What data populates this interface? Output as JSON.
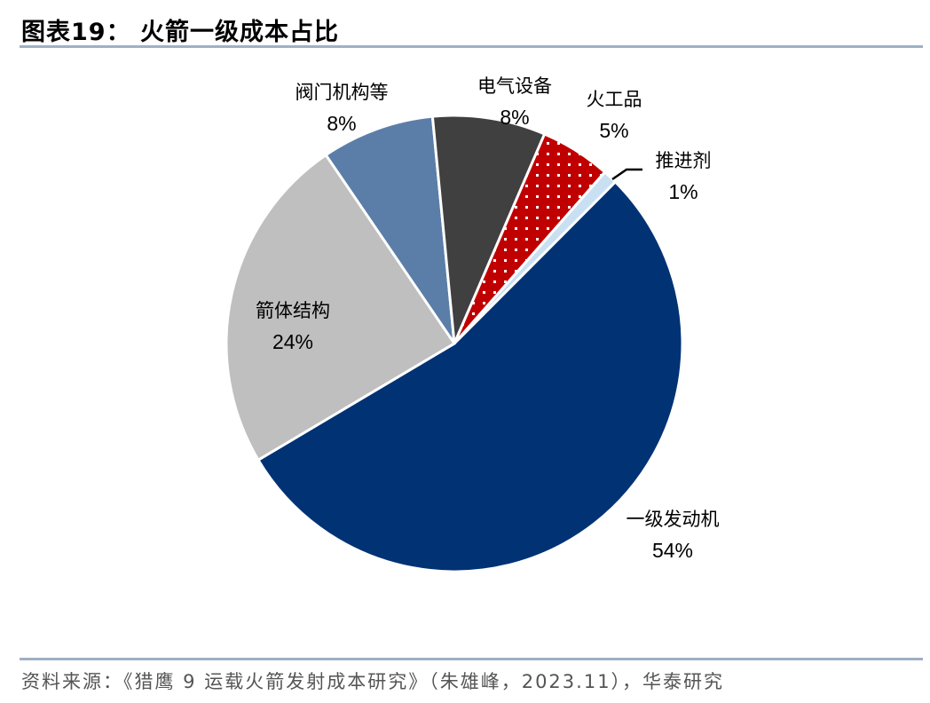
{
  "title": "图表19：  火箭一级成本占比",
  "footer": "资料来源：《猎鹰 9 运载火箭发射成本研究》（朱雄峰，2023.11），华泰研究",
  "chart_data": {
    "type": "pie",
    "title": "图表19：  火箭一级成本占比",
    "start_angle_deg": -34.3,
    "direction": "clockwise",
    "legend": "none",
    "slices": [
      {
        "label": "阀门机构等",
        "value": 8,
        "pct_label": "8%",
        "color": "#5b7ea8"
      },
      {
        "label": "电气设备",
        "value": 8,
        "pct_label": "8%",
        "color": "#404040"
      },
      {
        "label": "火工品",
        "value": 5,
        "pct_label": "5%",
        "color": "#c00000",
        "pattern": "white-dots"
      },
      {
        "label": "推进剂",
        "value": 1,
        "pct_label": "1%",
        "color": "#c9e0f2"
      },
      {
        "label": "一级发动机",
        "value": 54,
        "pct_label": "54%",
        "color": "#003274"
      },
      {
        "label": "箭体结构",
        "value": 24,
        "pct_label": "24%",
        "color": "#bfbfbf"
      }
    ]
  }
}
